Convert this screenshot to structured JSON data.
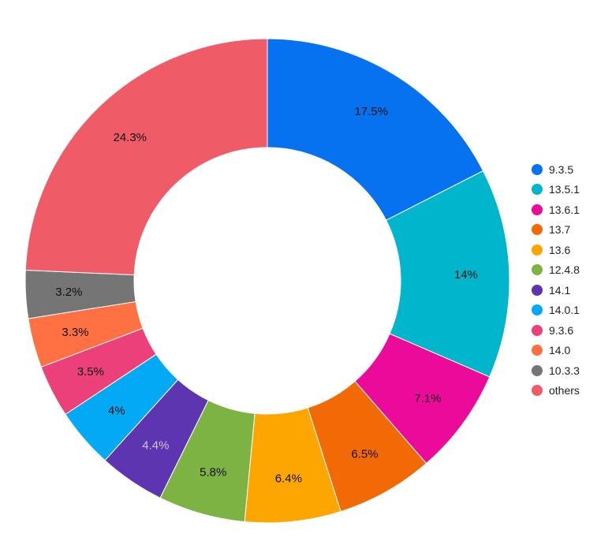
{
  "chart_data": {
    "type": "pie",
    "variant": "donut",
    "title": "",
    "legend_position": "right",
    "categories": [
      "9.3.5",
      "13.5.1",
      "13.6.1",
      "13.7",
      "13.6",
      "12.4.8",
      "14.1",
      "14.0.1",
      "9.3.6",
      "14.0",
      "10.3.3",
      "others"
    ],
    "values": [
      17.5,
      14,
      7.1,
      6.5,
      6.4,
      5.8,
      4.4,
      4,
      3.5,
      3.3,
      3.2,
      24.3
    ],
    "labels": [
      "17.5%",
      "14%",
      "7.1%",
      "6.5%",
      "6.4%",
      "5.8%",
      "4.4%",
      "4%",
      "3.5%",
      "3.3%",
      "3.2%",
      "24.3%"
    ],
    "colors": [
      "#0672ef",
      "#00b5cc",
      "#ec0a9a",
      "#f26a05",
      "#fda602",
      "#7cb342",
      "#5e35b1",
      "#03a9f4",
      "#ec407a",
      "#ff7043",
      "#757575",
      "#ef5c67"
    ],
    "label_colors": [
      "#111",
      "#111",
      "#111",
      "#111",
      "#111",
      "#111",
      "#c8c8d8",
      "#111",
      "#111",
      "#111",
      "#111",
      "#111"
    ]
  },
  "legend": {
    "items": [
      {
        "label": "9.3.5",
        "color": "#0672ef"
      },
      {
        "label": "13.5.1",
        "color": "#00b5cc"
      },
      {
        "label": "13.6.1",
        "color": "#ec0a9a"
      },
      {
        "label": "13.7",
        "color": "#f26a05"
      },
      {
        "label": "13.6",
        "color": "#fda602"
      },
      {
        "label": "12.4.8",
        "color": "#7cb342"
      },
      {
        "label": "14.1",
        "color": "#5e35b1"
      },
      {
        "label": "14.0.1",
        "color": "#03a9f4"
      },
      {
        "label": "9.3.6",
        "color": "#ec407a"
      },
      {
        "label": "14.0",
        "color": "#ff7043"
      },
      {
        "label": "10.3.3",
        "color": "#757575"
      },
      {
        "label": "others",
        "color": "#ef5c67"
      }
    ]
  }
}
